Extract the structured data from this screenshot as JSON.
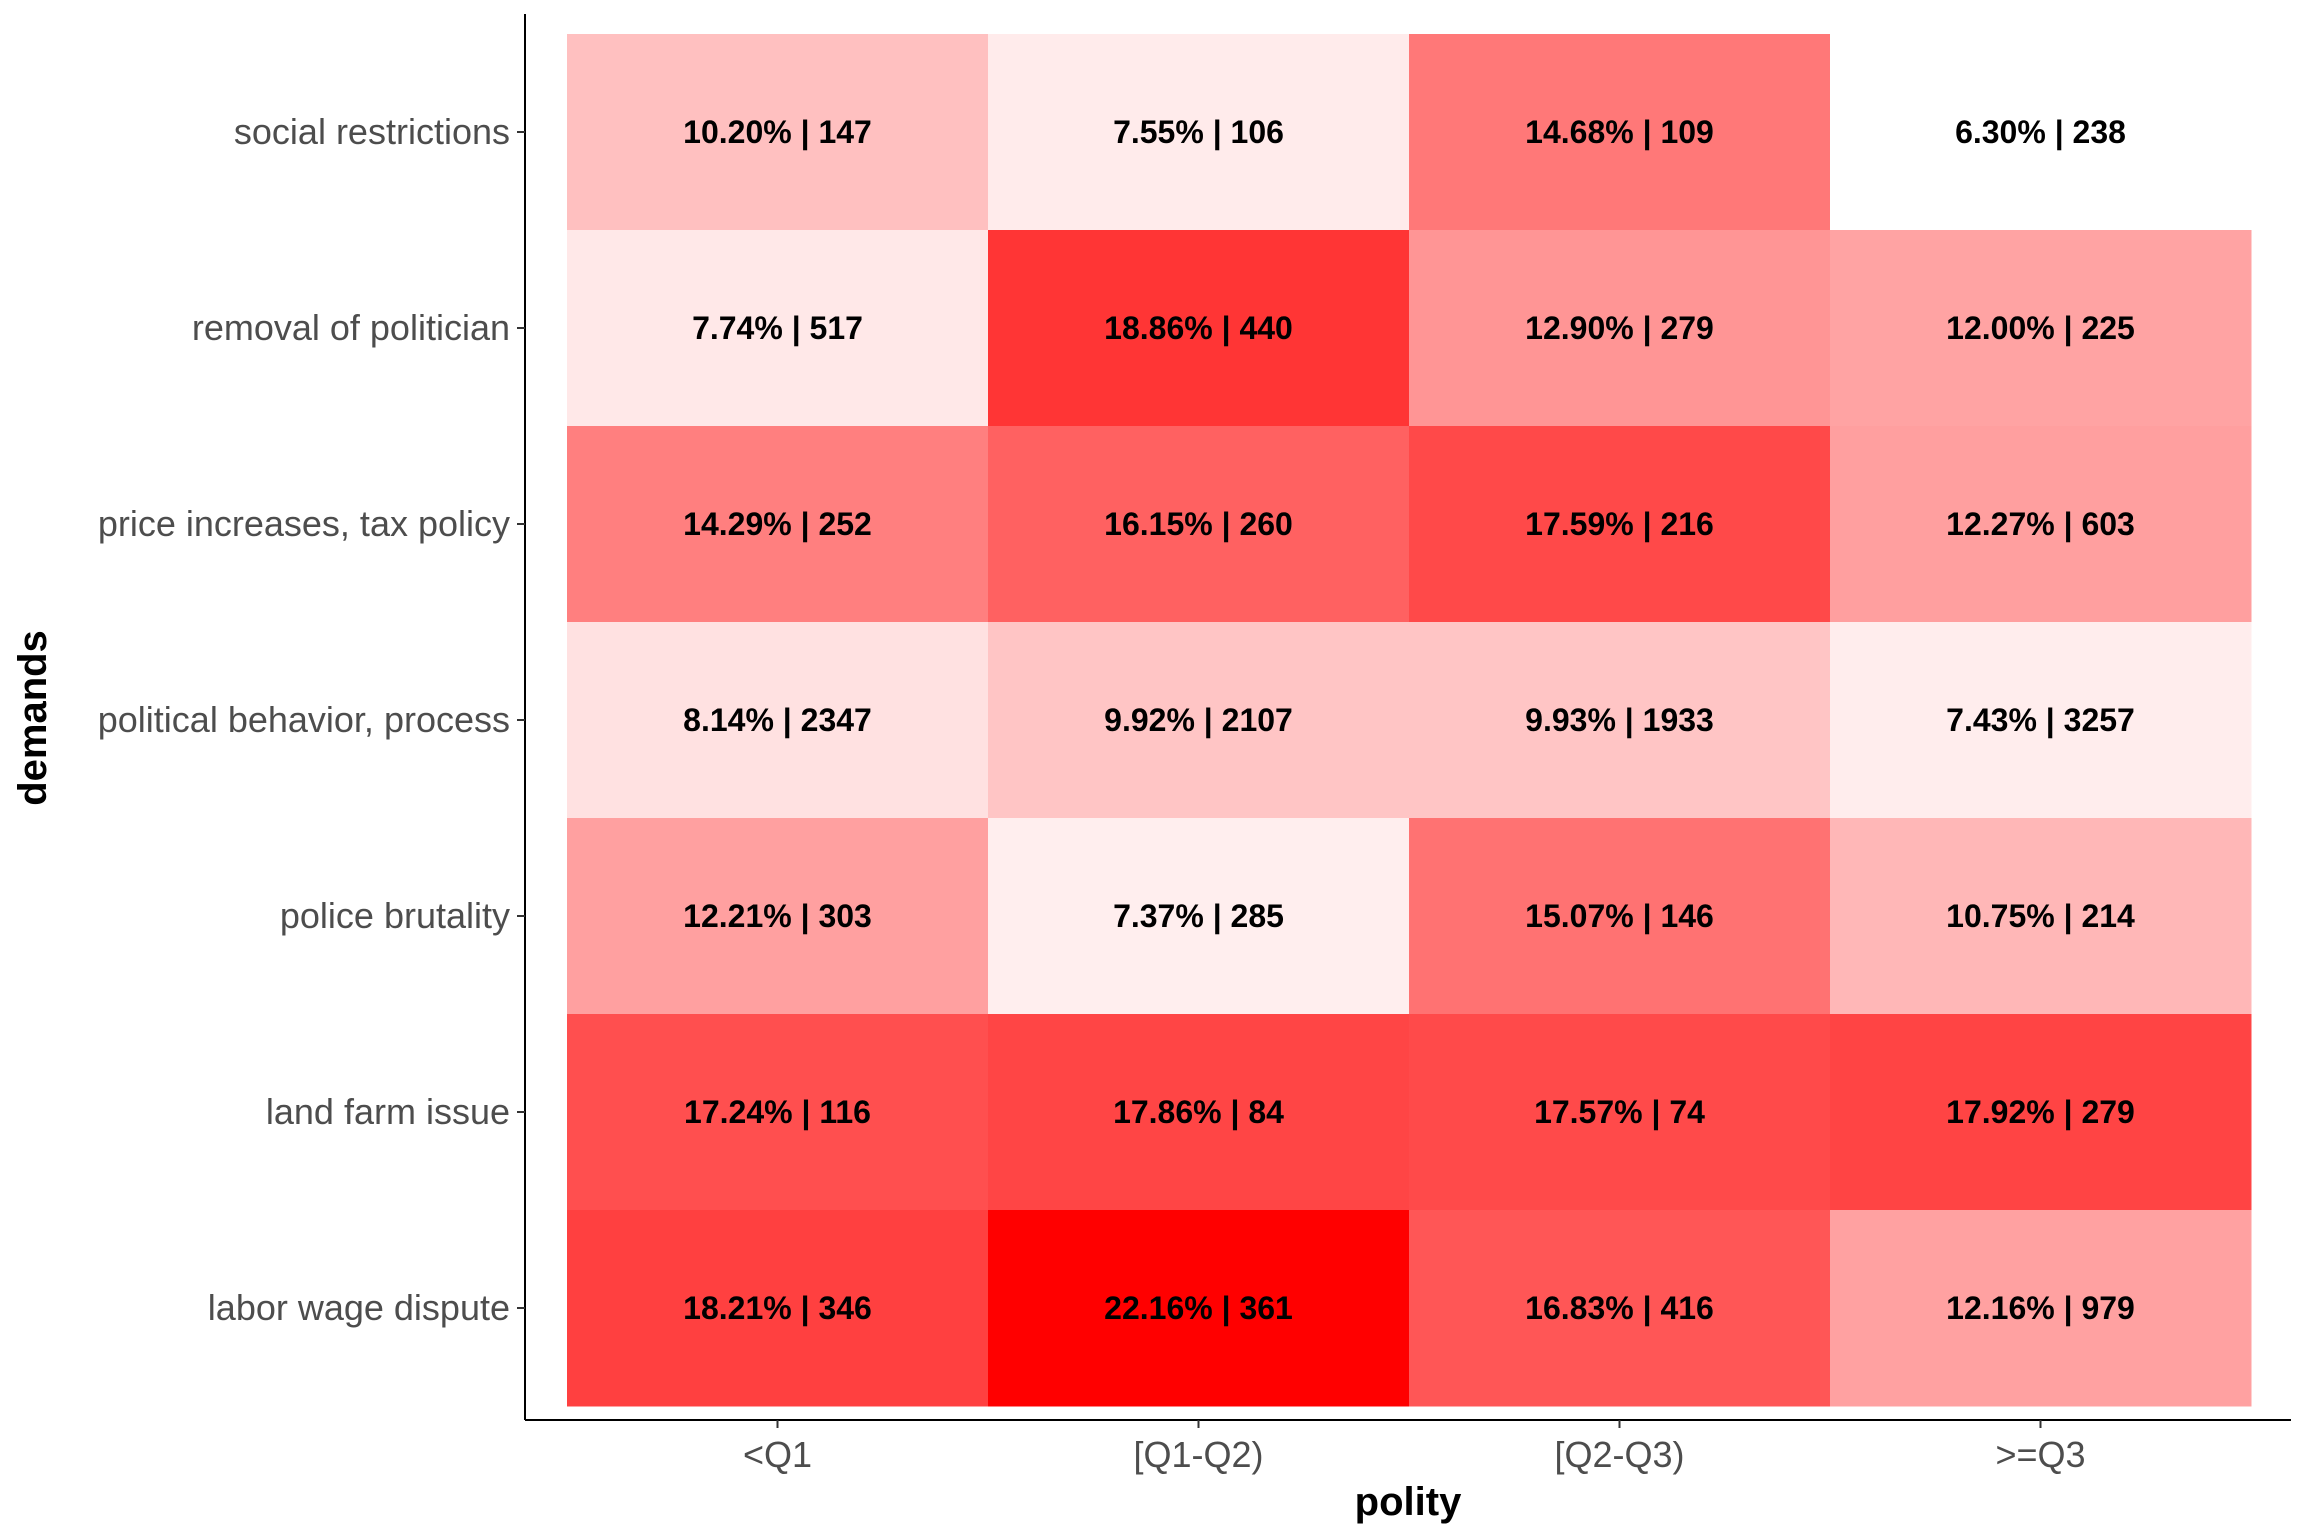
{
  "chart_data": {
    "type": "heatmap",
    "xlabel": "polity",
    "ylabel": "demands",
    "x_categories": [
      "<Q1",
      "[Q1-Q2)",
      "[Q2-Q3)",
      ">=Q3"
    ],
    "y_categories": [
      "social restrictions",
      "removal of politician",
      "price increases, tax policy",
      "political behavior, process",
      "police brutality",
      "land farm issue",
      "labor wage dispute"
    ],
    "color_scale": {
      "low": "#ffffff",
      "high": "#ff0000",
      "min": 6.3,
      "max": 22.16
    },
    "cells": [
      [
        {
          "pct": 10.2,
          "n": 147,
          "label": "10.20% | 147"
        },
        {
          "pct": 7.55,
          "n": 106,
          "label": "7.55% | 106"
        },
        {
          "pct": 14.68,
          "n": 109,
          "label": "14.68% | 109"
        },
        {
          "pct": 6.3,
          "n": 238,
          "label": "6.30% | 238"
        }
      ],
      [
        {
          "pct": 7.74,
          "n": 517,
          "label": "7.74% | 517"
        },
        {
          "pct": 18.86,
          "n": 440,
          "label": "18.86% | 440"
        },
        {
          "pct": 12.9,
          "n": 279,
          "label": "12.90% | 279"
        },
        {
          "pct": 12.0,
          "n": 225,
          "label": "12.00% | 225"
        }
      ],
      [
        {
          "pct": 14.29,
          "n": 252,
          "label": "14.29% | 252"
        },
        {
          "pct": 16.15,
          "n": 260,
          "label": "16.15% | 260"
        },
        {
          "pct": 17.59,
          "n": 216,
          "label": "17.59% | 216"
        },
        {
          "pct": 12.27,
          "n": 603,
          "label": "12.27% | 603"
        }
      ],
      [
        {
          "pct": 8.14,
          "n": 2347,
          "label": "8.14% | 2347"
        },
        {
          "pct": 9.92,
          "n": 2107,
          "label": "9.92% | 2107"
        },
        {
          "pct": 9.93,
          "n": 1933,
          "label": "9.93% | 1933"
        },
        {
          "pct": 7.43,
          "n": 3257,
          "label": "7.43% | 3257"
        }
      ],
      [
        {
          "pct": 12.21,
          "n": 303,
          "label": "12.21% | 303"
        },
        {
          "pct": 7.37,
          "n": 285,
          "label": "7.37% | 285"
        },
        {
          "pct": 15.07,
          "n": 146,
          "label": "15.07% | 146"
        },
        {
          "pct": 10.75,
          "n": 214,
          "label": "10.75% | 214"
        }
      ],
      [
        {
          "pct": 17.24,
          "n": 116,
          "label": "17.24% | 116"
        },
        {
          "pct": 17.86,
          "n": 84,
          "label": "17.86% | 84"
        },
        {
          "pct": 17.57,
          "n": 74,
          "label": "17.57% | 74"
        },
        {
          "pct": 17.92,
          "n": 279,
          "label": "17.92% | 279"
        }
      ],
      [
        {
          "pct": 18.21,
          "n": 346,
          "label": "18.21% | 346"
        },
        {
          "pct": 22.16,
          "n": 361,
          "label": "22.16% | 361"
        },
        {
          "pct": 16.83,
          "n": 416,
          "label": "16.83% | 416"
        },
        {
          "pct": 12.16,
          "n": 979,
          "label": "12.16% | 979"
        }
      ]
    ],
    "grid": false,
    "legend": "none"
  }
}
